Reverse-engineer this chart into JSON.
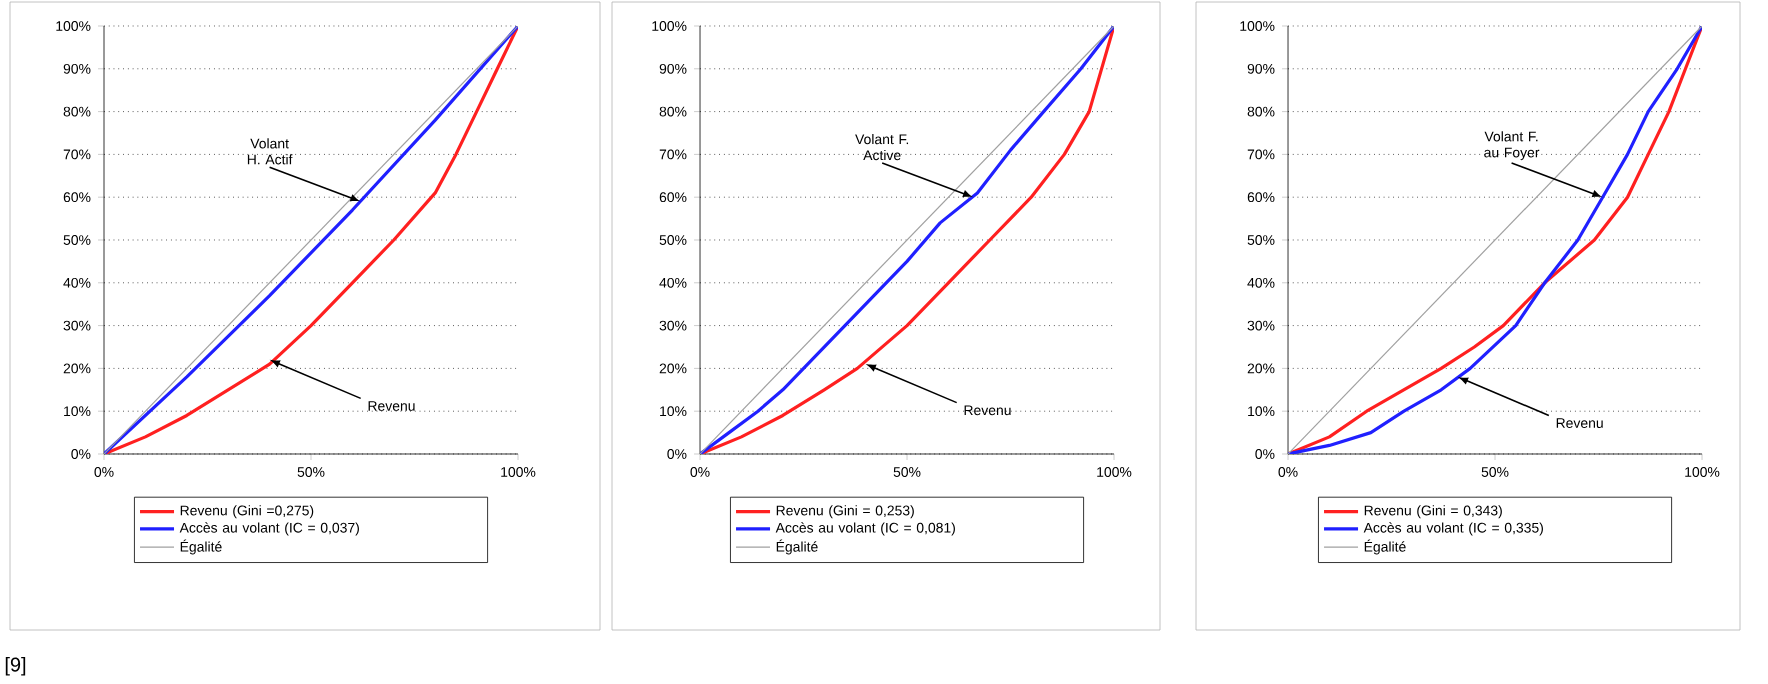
{
  "chart_data": [
    {
      "type": "line",
      "xlim": [
        0,
        100
      ],
      "ylim": [
        0,
        100
      ],
      "xticks": [
        {
          "value": 0,
          "label": "0%"
        },
        {
          "value": 50,
          "label": "50%"
        },
        {
          "value": 100,
          "label": "100%"
        }
      ],
      "yticks": [
        {
          "value": 0,
          "label": "0%"
        },
        {
          "value": 10,
          "label": "10%"
        },
        {
          "value": 20,
          "label": "20%"
        },
        {
          "value": 30,
          "label": "30%"
        },
        {
          "value": 40,
          "label": "40%"
        },
        {
          "value": 50,
          "label": "50%"
        },
        {
          "value": 60,
          "label": "60%"
        },
        {
          "value": 70,
          "label": "70%"
        },
        {
          "value": 80,
          "label": "80%"
        },
        {
          "value": 90,
          "label": "90%"
        },
        {
          "value": 100,
          "label": "100%"
        }
      ],
      "grid": "y",
      "legend": "bottom",
      "series": [
        {
          "name": "Revenu (Gini =0,275)",
          "color": "#ff2020",
          "x": [
            0,
            10,
            20,
            30,
            40,
            50,
            60,
            70,
            80,
            85,
            90,
            95,
            100
          ],
          "values": [
            0,
            4,
            9,
            15,
            21,
            30,
            40,
            50,
            61,
            70,
            80,
            90,
            100
          ]
        },
        {
          "name": "Accès au volant (IC = 0,037)",
          "color": "#2020ff",
          "x": [
            0,
            20,
            40,
            60,
            80,
            100
          ],
          "values": [
            0,
            18,
            37,
            57,
            78,
            100
          ]
        },
        {
          "name": "Égalité",
          "color": "#a0a0a0",
          "x": [
            0,
            100
          ],
          "values": [
            0,
            100
          ]
        }
      ],
      "annotations": [
        {
          "text": "Volant H. Actif",
          "x": 62,
          "y": 59
        },
        {
          "text": "Revenu",
          "x": 40,
          "y": 22
        },
        "[9]"
      ]
    },
    {
      "type": "line",
      "xlim": [
        0,
        100
      ],
      "ylim": [
        0,
        100
      ],
      "xticks": [
        {
          "value": 0,
          "label": "0%"
        },
        {
          "value": 50,
          "label": "50%"
        },
        {
          "value": 100,
          "label": "100%"
        }
      ],
      "yticks": [
        {
          "value": 0,
          "label": "0%"
        },
        {
          "value": 10,
          "label": "10%"
        },
        {
          "value": 20,
          "label": "20%"
        },
        {
          "value": 30,
          "label": "30%"
        },
        {
          "value": 40,
          "label": "40%"
        },
        {
          "value": 50,
          "label": "50%"
        },
        {
          "value": 60,
          "label": "60%"
        },
        {
          "value": 70,
          "label": "70%"
        },
        {
          "value": 80,
          "label": "80%"
        },
        {
          "value": 90,
          "label": "90%"
        },
        {
          "value": 100,
          "label": "100%"
        }
      ],
      "grid": "y",
      "legend": "bottom",
      "series": [
        {
          "name": "Revenu (Gini = 0,253)",
          "color": "#ff2020",
          "x": [
            0,
            10,
            20,
            30,
            38,
            50,
            60,
            70,
            80,
            88,
            94,
            100
          ],
          "values": [
            0,
            4,
            9,
            15,
            20,
            30,
            40,
            50,
            60,
            70,
            80,
            100
          ]
        },
        {
          "name": "Accès au volant (IC = 0,081)",
          "color": "#2020ff",
          "x": [
            0,
            7,
            14,
            20,
            27,
            35,
            42,
            50,
            58,
            67,
            75,
            83,
            92,
            100
          ],
          "values": [
            0,
            5,
            10,
            15,
            22,
            30,
            37,
            45,
            54,
            61,
            71,
            80,
            90,
            100
          ]
        },
        {
          "name": "Égalité",
          "color": "#a0a0a0",
          "x": [
            0,
            100
          ],
          "values": [
            0,
            100
          ]
        }
      ],
      "annotations": [
        {
          "text": "Volant F. Active",
          "x": 66,
          "y": 60
        },
        {
          "text": "Revenu",
          "x": 40,
          "y": 21
        }
      ]
    },
    {
      "type": "line",
      "xlim": [
        0,
        100
      ],
      "ylim": [
        0,
        100
      ],
      "xticks": [
        {
          "value": 0,
          "label": "0%"
        },
        {
          "value": 50,
          "label": "50%"
        },
        {
          "value": 100,
          "label": "100%"
        }
      ],
      "yticks": [
        {
          "value": 0,
          "label": "0%"
        },
        {
          "value": 10,
          "label": "10%"
        },
        {
          "value": 20,
          "label": "20%"
        },
        {
          "value": 30,
          "label": "30%"
        },
        {
          "value": 40,
          "label": "40%"
        },
        {
          "value": 50,
          "label": "50%"
        },
        {
          "value": 60,
          "label": "60%"
        },
        {
          "value": 70,
          "label": "70%"
        },
        {
          "value": 80,
          "label": "80%"
        },
        {
          "value": 90,
          "label": "90%"
        },
        {
          "value": 100,
          "label": "100%"
        }
      ],
      "grid": "y",
      "legend": "bottom",
      "series": [
        {
          "name": "Revenu (Gini = 0,343)",
          "color": "#ff2020",
          "x": [
            0,
            10,
            19,
            28,
            37,
            45,
            52,
            62,
            74,
            82,
            87,
            92,
            96,
            100
          ],
          "values": [
            0,
            4,
            10,
            15,
            20,
            25,
            30,
            40,
            50,
            60,
            70,
            80,
            90,
            100
          ]
        },
        {
          "name": "Accès au volant (IC = 0,335)",
          "color": "#2020ff",
          "x": [
            0,
            10,
            20,
            28,
            37,
            44,
            55,
            62,
            70,
            76,
            82,
            87,
            94,
            100
          ],
          "values": [
            0,
            2,
            5,
            10,
            15,
            20,
            30,
            40,
            50,
            60,
            70,
            80,
            90,
            100
          ]
        },
        {
          "name": "Égalité",
          "color": "#a0a0a0",
          "x": [
            0,
            100
          ],
          "values": [
            0,
            100
          ]
        }
      ],
      "annotations": [
        {
          "text": "Volant F. au Foyer",
          "x": 76,
          "y": 60
        },
        {
          "text": "Revenu",
          "x": 41,
          "y": 18
        }
      ]
    }
  ]
}
